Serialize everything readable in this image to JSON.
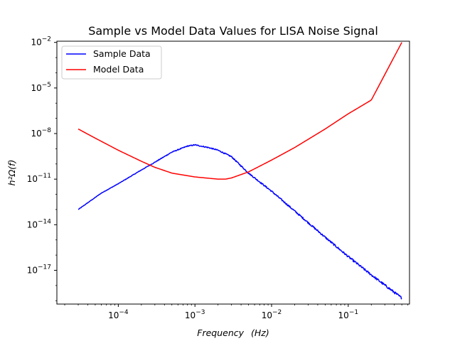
{
  "chart_data": {
    "type": "line",
    "title": "Sample vs Model Data Values for LISA Noise Signal",
    "xlabel": "Frequency",
    "xlabel_unit": "(Hz)",
    "ylabel": "h²Ω(f)",
    "xscale": "log",
    "yscale": "log",
    "xlim": [
      1.58e-05,
      0.63
    ],
    "ylim": [
      6e-20,
      0.012
    ],
    "legend": "top-left",
    "x_ticks": [
      {
        "base": "10",
        "exp": "−4"
      },
      {
        "base": "10",
        "exp": "−3"
      },
      {
        "base": "10",
        "exp": "−2"
      },
      {
        "base": "10",
        "exp": "−1"
      }
    ],
    "y_ticks": [
      {
        "base": "10",
        "exp": "−17"
      },
      {
        "base": "10",
        "exp": "−14"
      },
      {
        "base": "10",
        "exp": "−11"
      },
      {
        "base": "10",
        "exp": "−8"
      },
      {
        "base": "10",
        "exp": "−5"
      },
      {
        "base": "10",
        "exp": "−2"
      }
    ],
    "series": [
      {
        "name": "Sample Data",
        "color": "#0000ff",
        "x": [
          3e-05,
          6e-05,
          0.0001,
          0.0002,
          0.0003,
          0.0005,
          0.0008,
          0.001,
          0.0015,
          0.002,
          0.003,
          0.005,
          0.01,
          0.02,
          0.05,
          0.1,
          0.2,
          0.5
        ],
        "y": [
          1e-13,
          1.2e-12,
          5e-12,
          4e-11,
          1.3e-10,
          6e-10,
          1.5e-09,
          1.8e-09,
          1.2e-09,
          8e-10,
          3e-10,
          2.5e-11,
          1.6e-12,
          8e-14,
          1.5e-15,
          8e-17,
          5e-18,
          1.5e-19
        ]
      },
      {
        "name": "Model Data",
        "color": "#ff0000",
        "x": [
          3e-05,
          5e-05,
          0.0001,
          0.0002,
          0.0003,
          0.0005,
          0.001,
          0.002,
          0.0025,
          0.003,
          0.005,
          0.01,
          0.02,
          0.05,
          0.1,
          0.2,
          0.5
        ],
        "y": [
          2e-08,
          5e-09,
          8e-10,
          1.5e-10,
          6e-11,
          2.5e-11,
          1.4e-11,
          1e-11,
          1e-11,
          1.2e-11,
          3e-11,
          1.8e-10,
          1.2e-09,
          2e-08,
          2e-07,
          1.6e-06,
          0.01
        ]
      }
    ]
  }
}
